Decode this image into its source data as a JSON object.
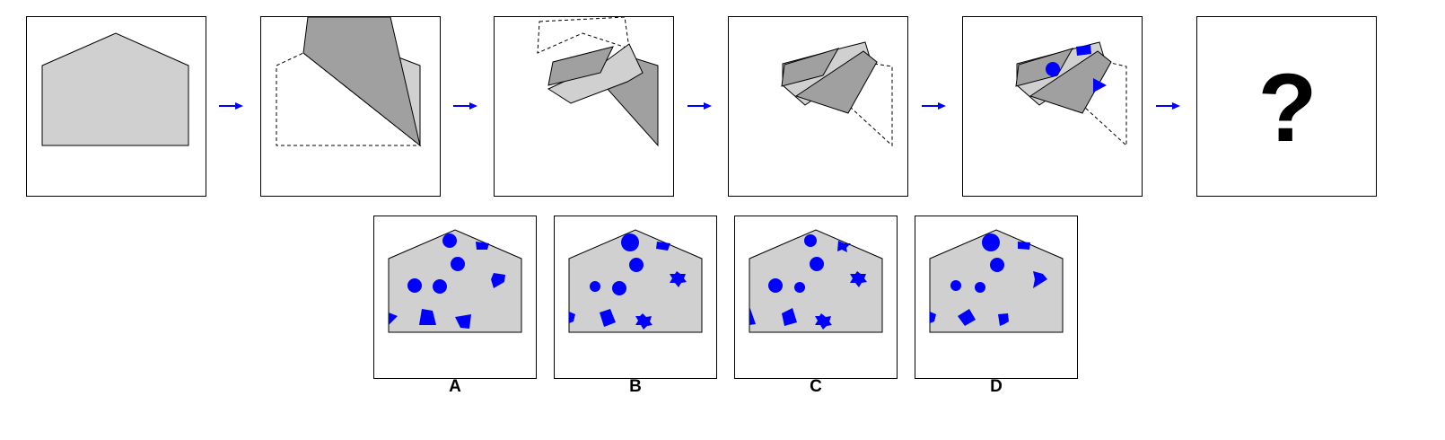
{
  "colors": {
    "paper": "#d0d0d0",
    "folded": "#a0a0a0",
    "hole": "#0000ff",
    "arrow": "#0000ff"
  },
  "sequence": {
    "steps": [
      "unfolded-paper",
      "fold-1",
      "fold-2",
      "fold-3",
      "punched",
      "unknown"
    ],
    "question_mark": "?"
  },
  "options": [
    {
      "label": "A"
    },
    {
      "label": "B"
    },
    {
      "label": "C"
    },
    {
      "label": "D"
    }
  ]
}
